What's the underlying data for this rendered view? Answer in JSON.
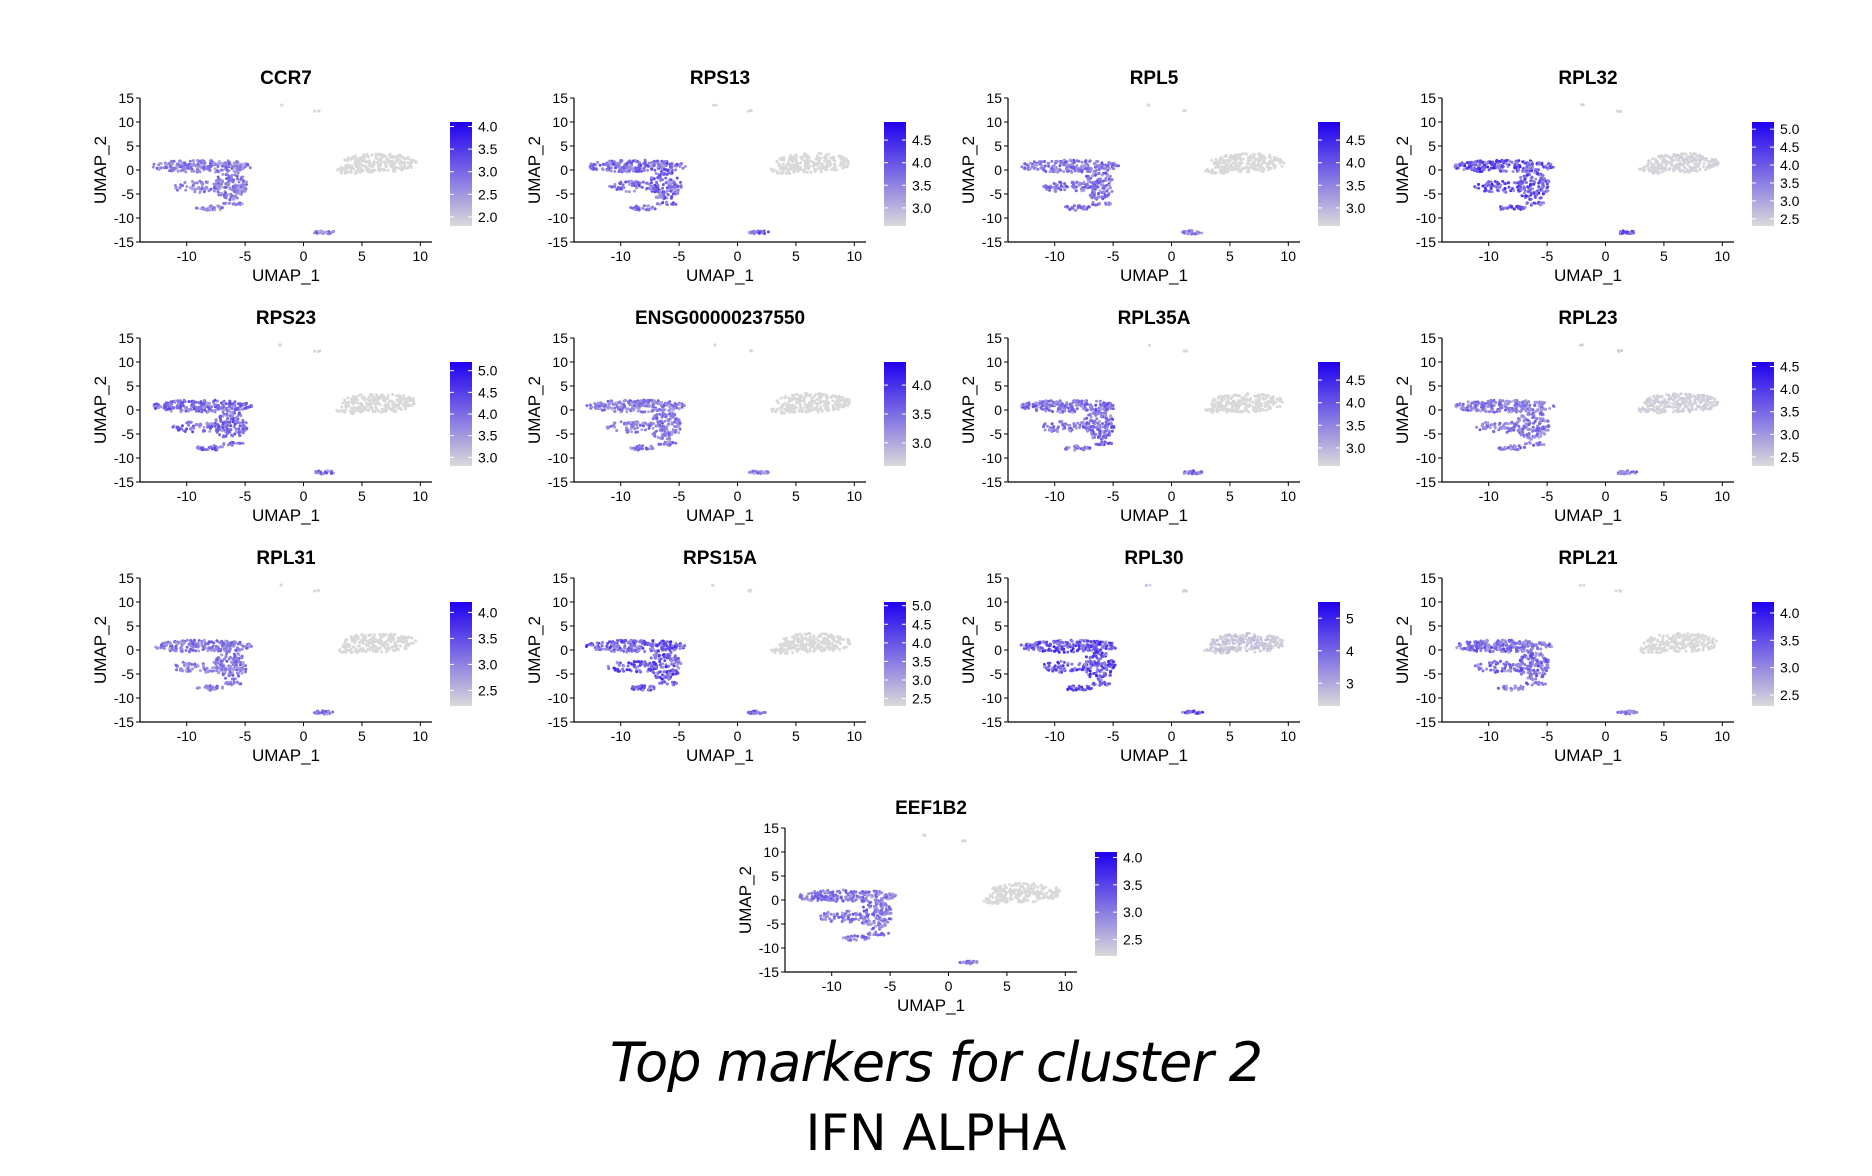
{
  "caption": {
    "title": "Top markers for cluster 2",
    "subtitle": "IFN ALPHA"
  },
  "colors": {
    "low": "#d9d9d9",
    "high": "#1f00f0",
    "axis": "#000000",
    "text": "#000000"
  },
  "chart_data": [
    {
      "type": "scatter",
      "title": "CCR7",
      "xlabel": "UMAP_1",
      "ylabel": "UMAP_2",
      "xticks": [
        "-10",
        "-5",
        "0",
        "5",
        "10"
      ],
      "yticks": [
        "15",
        "10",
        "5",
        "0",
        "-5",
        "-10",
        "-15"
      ],
      "xlim": [
        -14,
        11
      ],
      "ylim": [
        -15,
        15
      ],
      "legend_ticks": [
        "4.0",
        "3.5",
        "3.0",
        "2.5",
        "2.0"
      ],
      "legend_range": [
        1.8,
        4.1
      ],
      "intensity": 0.6,
      "right_intensity": 0
    },
    {
      "type": "scatter",
      "title": "RPS13",
      "xlabel": "UMAP_1",
      "ylabel": "UMAP_2",
      "xticks": [
        "-10",
        "-5",
        "0",
        "5",
        "10"
      ],
      "yticks": [
        "15",
        "10",
        "5",
        "0",
        "-5",
        "-10",
        "-15"
      ],
      "xlim": [
        -14,
        11
      ],
      "ylim": [
        -15,
        15
      ],
      "legend_ticks": [
        "4.5",
        "4.0",
        "3.5",
        "3.0"
      ],
      "legend_range": [
        2.6,
        4.9
      ],
      "intensity": 0.72,
      "right_intensity": 0
    },
    {
      "type": "scatter",
      "title": "RPL5",
      "xlabel": "UMAP_1",
      "ylabel": "UMAP_2",
      "xticks": [
        "-10",
        "-5",
        "0",
        "5",
        "10"
      ],
      "yticks": [
        "15",
        "10",
        "5",
        "0",
        "-5",
        "-10",
        "-15"
      ],
      "xlim": [
        -14,
        11
      ],
      "ylim": [
        -15,
        15
      ],
      "legend_ticks": [
        "4.5",
        "4.0",
        "3.5",
        "3.0"
      ],
      "legend_range": [
        2.6,
        4.9
      ],
      "intensity": 0.65,
      "right_intensity": 0
    },
    {
      "type": "scatter",
      "title": "RPL32",
      "xlabel": "UMAP_1",
      "ylabel": "UMAP_2",
      "xticks": [
        "-10",
        "-5",
        "0",
        "5",
        "10"
      ],
      "yticks": [
        "15",
        "10",
        "5",
        "0",
        "-5",
        "-10",
        "-15"
      ],
      "xlim": [
        -14,
        11
      ],
      "ylim": [
        -15,
        15
      ],
      "legend_ticks": [
        "5.0",
        "4.5",
        "4.0",
        "3.5",
        "3.0",
        "2.5"
      ],
      "legend_range": [
        2.3,
        5.2
      ],
      "intensity": 0.85,
      "right_intensity": 0.05
    },
    {
      "type": "scatter",
      "title": "RPS23",
      "xlabel": "UMAP_1",
      "ylabel": "UMAP_2",
      "xticks": [
        "-10",
        "-5",
        "0",
        "5",
        "10"
      ],
      "yticks": [
        "15",
        "10",
        "5",
        "0",
        "-5",
        "-10",
        "-15"
      ],
      "xlim": [
        -14,
        11
      ],
      "ylim": [
        -15,
        15
      ],
      "legend_ticks": [
        "5.0",
        "4.5",
        "4.0",
        "3.5",
        "3.0"
      ],
      "legend_range": [
        2.8,
        5.2
      ],
      "intensity": 0.7,
      "right_intensity": 0
    },
    {
      "type": "scatter",
      "title": "ENSG00000237550",
      "xlabel": "UMAP_1",
      "ylabel": "UMAP_2",
      "xticks": [
        "-10",
        "-5",
        "0",
        "5",
        "10"
      ],
      "yticks": [
        "15",
        "10",
        "5",
        "0",
        "-5",
        "-10",
        "-15"
      ],
      "xlim": [
        -14,
        11
      ],
      "ylim": [
        -15,
        15
      ],
      "legend_ticks": [
        "4.0",
        "3.5",
        "3.0"
      ],
      "legend_range": [
        2.6,
        4.4
      ],
      "intensity": 0.6,
      "right_intensity": 0
    },
    {
      "type": "scatter",
      "title": "RPL35A",
      "xlabel": "UMAP_1",
      "ylabel": "UMAP_2",
      "xticks": [
        "-10",
        "-5",
        "0",
        "5",
        "10"
      ],
      "yticks": [
        "15",
        "10",
        "5",
        "0",
        "-5",
        "-10",
        "-15"
      ],
      "xlim": [
        -14,
        11
      ],
      "ylim": [
        -15,
        15
      ],
      "legend_ticks": [
        "4.5",
        "4.0",
        "3.5",
        "3.0"
      ],
      "legend_range": [
        2.6,
        4.9
      ],
      "intensity": 0.68,
      "right_intensity": 0
    },
    {
      "type": "scatter",
      "title": "RPL23",
      "xlabel": "UMAP_1",
      "ylabel": "UMAP_2",
      "xticks": [
        "-10",
        "-5",
        "0",
        "5",
        "10"
      ],
      "yticks": [
        "15",
        "10",
        "5",
        "0",
        "-5",
        "-10",
        "-15"
      ],
      "xlim": [
        -14,
        11
      ],
      "ylim": [
        -15,
        15
      ],
      "legend_ticks": [
        "4.5",
        "4.0",
        "3.5",
        "3.0",
        "2.5"
      ],
      "legend_range": [
        2.3,
        4.6
      ],
      "intensity": 0.6,
      "right_intensity": 0.08
    },
    {
      "type": "scatter",
      "title": "RPL31",
      "xlabel": "UMAP_1",
      "ylabel": "UMAP_2",
      "xticks": [
        "-10",
        "-5",
        "0",
        "5",
        "10"
      ],
      "yticks": [
        "15",
        "10",
        "5",
        "0",
        "-5",
        "-10",
        "-15"
      ],
      "xlim": [
        -14,
        11
      ],
      "ylim": [
        -15,
        15
      ],
      "legend_ticks": [
        "4.0",
        "3.5",
        "3.0",
        "2.5"
      ],
      "legend_range": [
        2.2,
        4.2
      ],
      "intensity": 0.6,
      "right_intensity": 0
    },
    {
      "type": "scatter",
      "title": "RPS15A",
      "xlabel": "UMAP_1",
      "ylabel": "UMAP_2",
      "xticks": [
        "-10",
        "-5",
        "0",
        "5",
        "10"
      ],
      "yticks": [
        "15",
        "10",
        "5",
        "0",
        "-5",
        "-10",
        "-15"
      ],
      "xlim": [
        -14,
        11
      ],
      "ylim": [
        -15,
        15
      ],
      "legend_ticks": [
        "5.0",
        "4.5",
        "4.0",
        "3.5",
        "3.0",
        "2.5"
      ],
      "legend_range": [
        2.3,
        5.1
      ],
      "intensity": 0.82,
      "right_intensity": 0
    },
    {
      "type": "scatter",
      "title": "RPL30",
      "xlabel": "UMAP_1",
      "ylabel": "UMAP_2",
      "xticks": [
        "-10",
        "-5",
        "0",
        "5",
        "10"
      ],
      "yticks": [
        "15",
        "10",
        "5",
        "0",
        "-5",
        "-10",
        "-15"
      ],
      "xlim": [
        -14,
        11
      ],
      "ylim": [
        -15,
        15
      ],
      "legend_ticks": [
        "5",
        "4",
        "3"
      ],
      "legend_range": [
        2.3,
        5.5
      ],
      "intensity": 0.85,
      "right_intensity": 0.15
    },
    {
      "type": "scatter",
      "title": "RPL21",
      "xlabel": "UMAP_1",
      "ylabel": "UMAP_2",
      "xticks": [
        "-10",
        "-5",
        "0",
        "5",
        "10"
      ],
      "yticks": [
        "15",
        "10",
        "5",
        "0",
        "-5",
        "-10",
        "-15"
      ],
      "xlim": [
        -14,
        11
      ],
      "ylim": [
        -15,
        15
      ],
      "legend_ticks": [
        "4.0",
        "3.5",
        "3.0",
        "2.5"
      ],
      "legend_range": [
        2.3,
        4.2
      ],
      "intensity": 0.68,
      "right_intensity": 0
    },
    {
      "type": "scatter",
      "title": "EEF1B2",
      "xlabel": "UMAP_1",
      "ylabel": "UMAP_2",
      "xticks": [
        "-10",
        "-5",
        "0",
        "5",
        "10"
      ],
      "yticks": [
        "15",
        "10",
        "5",
        "0",
        "-5",
        "-10",
        "-15"
      ],
      "xlim": [
        -14,
        11
      ],
      "ylim": [
        -15,
        15
      ],
      "legend_ticks": [
        "4.0",
        "3.5",
        "3.0",
        "2.5"
      ],
      "legend_range": [
        2.2,
        4.1
      ],
      "intensity": 0.62,
      "right_intensity": 0
    }
  ]
}
